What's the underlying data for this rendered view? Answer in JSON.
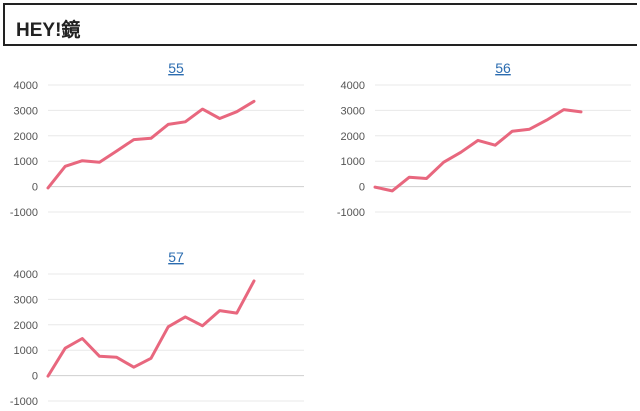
{
  "header": {
    "title": "HEY!鏡"
  },
  "colors": {
    "line": "#e8677e",
    "link": "#2b6cb0",
    "grid": "#e8e8e8"
  },
  "chart_data": [
    {
      "type": "line",
      "title": "55",
      "ylim": [
        -1000,
        4000
      ],
      "yticks": [
        "4000",
        "3000",
        "2000",
        "1000",
        "0",
        "-1000"
      ],
      "grid": true,
      "series": [
        {
          "values": [
            -50,
            800,
            1020,
            960,
            1400,
            1850,
            1900,
            2450,
            2550,
            3050,
            2680,
            2950,
            3360
          ]
        }
      ]
    },
    {
      "type": "line",
      "title": "56",
      "ylim": [
        -1000,
        4000
      ],
      "yticks": [
        "4000",
        "3000",
        "2000",
        "1000",
        "0",
        "-1000"
      ],
      "grid": true,
      "series": [
        {
          "values": [
            -20,
            -170,
            370,
            320,
            960,
            1350,
            1820,
            1630,
            2180,
            2260,
            2620,
            3030,
            2940
          ]
        }
      ]
    },
    {
      "type": "line",
      "title": "57",
      "ylim": [
        -1000,
        4000
      ],
      "yticks": [
        "4000",
        "3000",
        "2000",
        "1000",
        "0",
        "-1000"
      ],
      "grid": true,
      "series": [
        {
          "values": [
            -20,
            1080,
            1460,
            760,
            720,
            330,
            680,
            1920,
            2310,
            1960,
            2560,
            2460,
            3730
          ]
        }
      ]
    }
  ]
}
